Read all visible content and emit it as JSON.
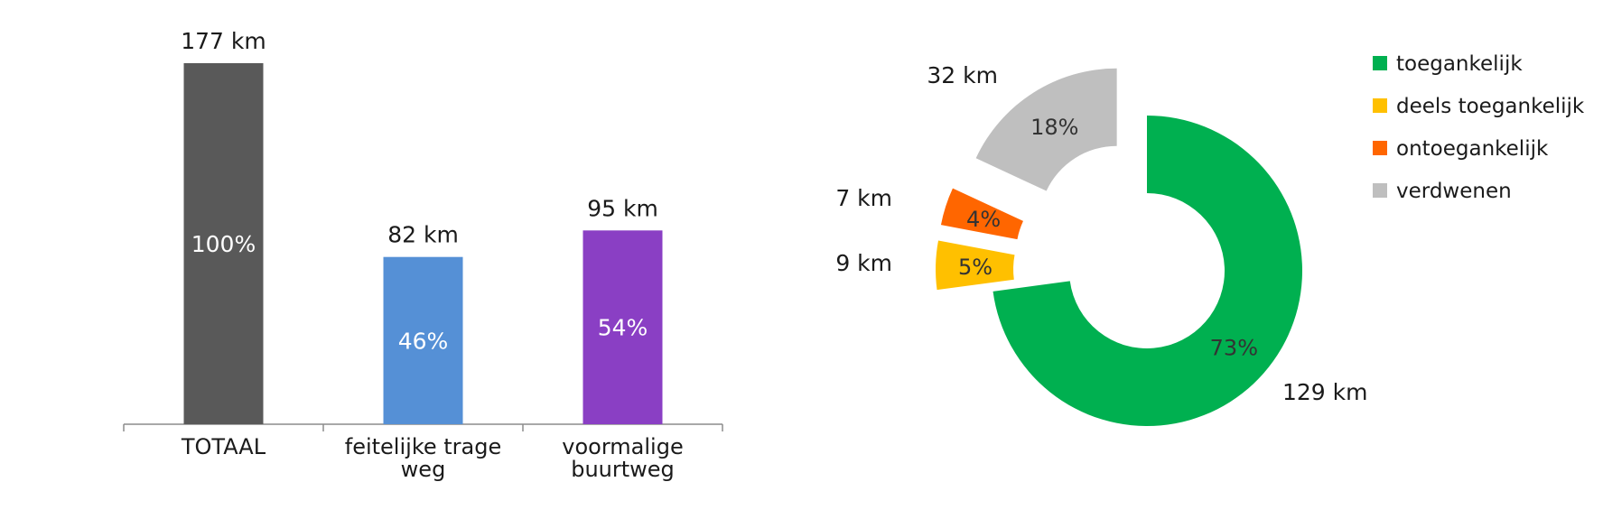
{
  "chart_data": [
    {
      "type": "bar",
      "categories": [
        [
          "TOTAAL"
        ],
        [
          "feitelijke trage",
          "weg"
        ],
        [
          "voormalige",
          "buurtweg"
        ]
      ],
      "values": [
        177,
        82,
        95
      ],
      "value_labels": [
        "177 km",
        "82 km",
        "95 km"
      ],
      "percent_labels": [
        "100%",
        "46%",
        "54%"
      ],
      "colors": [
        "#595959",
        "#5590d6",
        "#8a3fc4"
      ],
      "unit": "km",
      "ylim": [
        0,
        177
      ],
      "grid": false
    },
    {
      "type": "pie",
      "variant": "exploded-donut",
      "series": [
        {
          "name": "toegankelijk",
          "value": 129,
          "value_label": "129 km",
          "percent_label": "73%",
          "color": "#00b050"
        },
        {
          "name": "deels toegankelijk",
          "value": 9,
          "value_label": "9 km",
          "percent_label": "5%",
          "color": "#ffc000"
        },
        {
          "name": "ontoegankelijk",
          "value": 7,
          "value_label": "7 km",
          "percent_label": "4%",
          "color": "#ff6600"
        },
        {
          "name": "verdwenen",
          "value": 32,
          "value_label": "32 km",
          "percent_label": "18%",
          "color": "#bfbfbf"
        }
      ],
      "legend_position": "top-right"
    }
  ]
}
